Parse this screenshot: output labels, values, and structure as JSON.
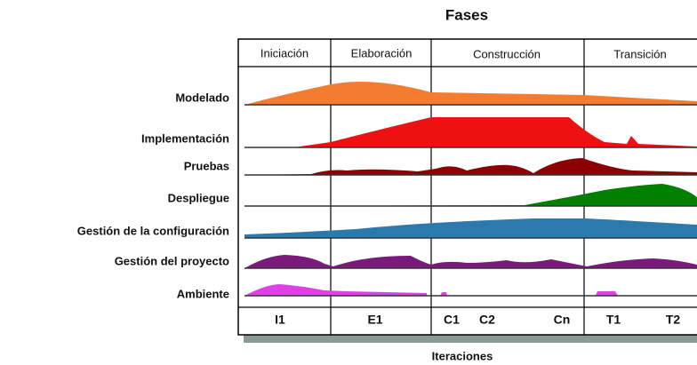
{
  "title": "Fases",
  "phases": [
    "Iniciación",
    "Elaboración",
    "Construcción",
    "Transición"
  ],
  "disciplines": [
    "Modelado",
    "Implementación",
    "Pruebas",
    "Despliegue",
    "Gestión de la configuración",
    "Gestión del proyecto",
    "Ambiente"
  ],
  "iterations": [
    "I1",
    "E1",
    "C1",
    "C2",
    "Cn",
    "T1",
    "T2"
  ],
  "x_axis_label": "Iteraciones"
}
